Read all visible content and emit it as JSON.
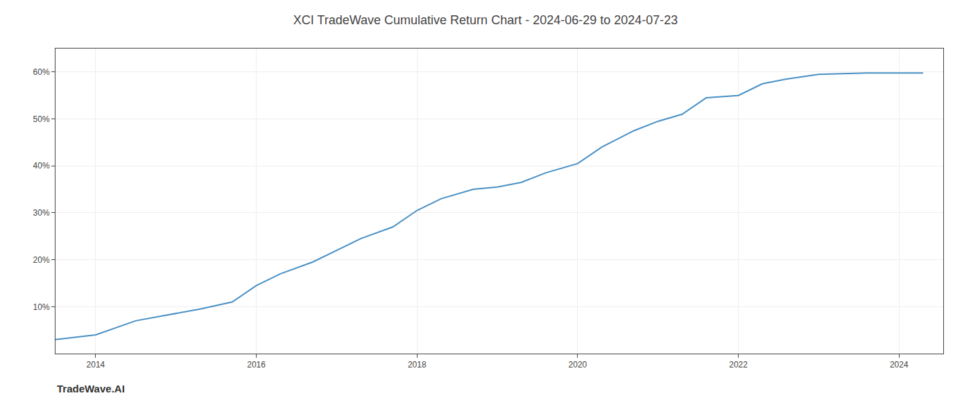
{
  "chart_data": {
    "type": "line",
    "title": "XCI TradeWave Cumulative Return Chart - 2024-06-29 to 2024-07-23",
    "annotations": [
      {
        "text": "TradeWave.AI"
      }
    ],
    "x": [
      2013.5,
      2014.0,
      2014.5,
      2015.0,
      2015.3,
      2015.7,
      2016.0,
      2016.3,
      2016.7,
      2017.0,
      2017.3,
      2017.7,
      2018.0,
      2018.3,
      2018.7,
      2019.0,
      2019.3,
      2019.6,
      2019.9,
      2020.0,
      2020.3,
      2020.7,
      2021.0,
      2021.3,
      2021.6,
      2022.0,
      2022.3,
      2022.6,
      2023.0,
      2023.3,
      2023.6,
      2023.9,
      2024.0,
      2024.3
    ],
    "values": [
      3.0,
      4.0,
      7.0,
      8.5,
      9.5,
      11.0,
      14.5,
      17.0,
      19.5,
      22.0,
      24.5,
      27.0,
      30.5,
      33.0,
      35.0,
      35.5,
      36.5,
      38.5,
      40.0,
      40.5,
      44.0,
      47.5,
      49.5,
      51.0,
      54.5,
      55.0,
      57.5,
      58.5,
      59.5,
      59.7,
      59.8,
      59.8,
      59.8,
      59.8
    ],
    "color": "#4a90c4",
    "xlim": [
      2013.5,
      2024.55
    ],
    "ylim": [
      0,
      65
    ],
    "xticks": [
      2014,
      2016,
      2018,
      2020,
      2022,
      2024
    ],
    "yticks": [
      {
        "value": 10,
        "label": "10%"
      },
      {
        "value": 20,
        "label": "20%"
      },
      {
        "value": 30,
        "label": "30%"
      },
      {
        "value": 40,
        "label": "40%"
      },
      {
        "value": 50,
        "label": "50%"
      },
      {
        "value": 60,
        "label": "60%"
      }
    ],
    "grid": true
  }
}
